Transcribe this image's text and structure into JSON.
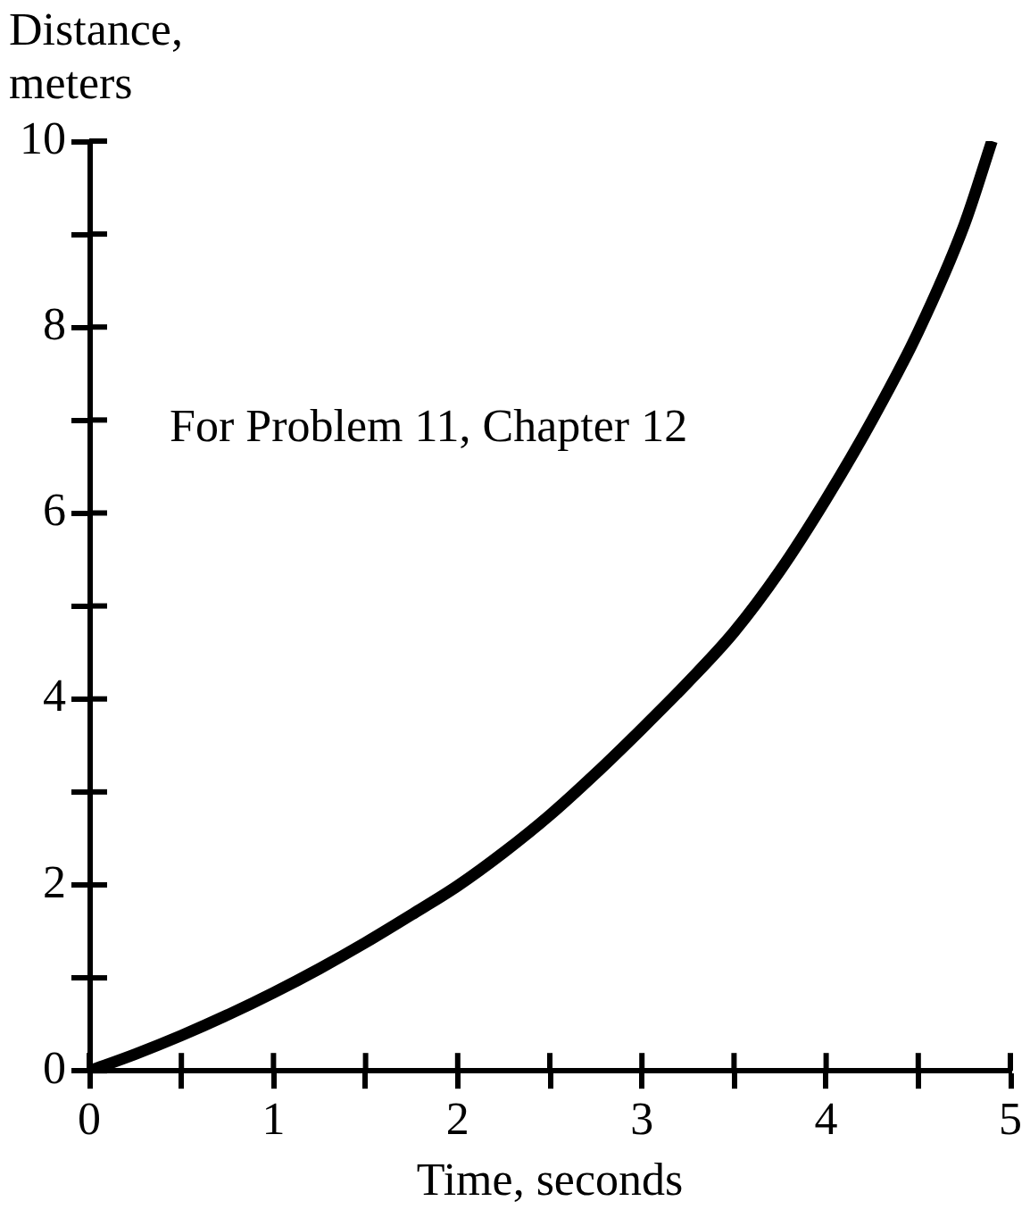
{
  "chart_data": {
    "type": "line",
    "xlabel": "Time, seconds",
    "ylabel": "Distance, meters",
    "annotations": [
      "For Problem 11, Chapter 12"
    ],
    "x": [
      0,
      0.25,
      0.5,
      0.75,
      1,
      1.25,
      1.5,
      1.75,
      2,
      2.25,
      2.5,
      2.75,
      3,
      3.25,
      3.5,
      3.75,
      4,
      4.25,
      4.5,
      4.75,
      4.9
    ],
    "values": [
      0,
      0.18,
      0.38,
      0.6,
      0.84,
      1.1,
      1.38,
      1.68,
      1.99,
      2.35,
      2.75,
      3.2,
      3.68,
      4.18,
      4.72,
      5.38,
      6.15,
      7.0,
      7.95,
      9.1,
      10
    ],
    "color": "#000000",
    "xlim": [
      0,
      5
    ],
    "ylim": [
      0,
      10
    ],
    "xticks": [
      0,
      {
        "value": 0.5,
        "label": null
      },
      1,
      {
        "value": 1.5,
        "label": null
      },
      2,
      {
        "value": 2.5,
        "label": null
      },
      3,
      {
        "value": 3.5,
        "label": null
      },
      4,
      {
        "value": 4.5,
        "label": null
      },
      5
    ],
    "yticks": [
      0,
      {
        "value": 1,
        "label": null
      },
      2,
      {
        "value": 3,
        "label": null
      },
      4,
      {
        "value": 5,
        "label": null
      },
      6,
      {
        "value": 7,
        "label": null
      },
      8,
      {
        "value": 9,
        "label": null
      },
      10
    ]
  }
}
